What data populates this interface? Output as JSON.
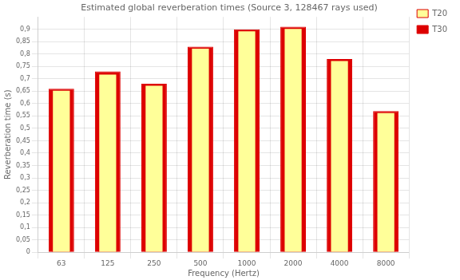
{
  "chart_data": {
    "type": "bar",
    "title": "Estimated global reverberation times (Source 3, 128467 rays used)",
    "xlabel": "Frequency (Hertz)",
    "ylabel": "Reverberation time (s)",
    "categories": [
      "63",
      "125",
      "250",
      "500",
      "1000",
      "2000",
      "4000",
      "8000"
    ],
    "series": [
      {
        "name": "T30",
        "color": "#dd0000",
        "values": [
          0.66,
          0.73,
          0.68,
          0.83,
          0.9,
          0.91,
          0.78,
          0.57
        ]
      },
      {
        "name": "T20",
        "color": "#ffff99",
        "values": [
          0.655,
          0.72,
          0.675,
          0.825,
          0.895,
          0.905,
          0.775,
          0.565
        ]
      }
    ],
    "ylim": [
      0,
      0.95
    ],
    "yticks": [
      0,
      {
        "value": 0.05,
        "label": "0,05"
      },
      {
        "value": 0.1,
        "label": "0,1"
      },
      {
        "value": 0.15,
        "label": "0,15"
      },
      {
        "value": 0.2,
        "label": "0,2"
      },
      {
        "value": 0.25,
        "label": "0,25"
      },
      {
        "value": 0.3,
        "label": "0,3"
      },
      {
        "value": 0.35,
        "label": "0,35"
      },
      {
        "value": 0.4,
        "label": "0,4"
      },
      {
        "value": 0.45,
        "label": "0,45"
      },
      {
        "value": 0.5,
        "label": "0,5"
      },
      {
        "value": 0.55,
        "label": "0,55"
      },
      {
        "value": 0.6,
        "label": "0,6"
      },
      {
        "value": 0.65,
        "label": "0,65"
      },
      {
        "value": 0.7,
        "label": "0,7"
      },
      {
        "value": 0.75,
        "label": "0,75"
      },
      {
        "value": 0.8,
        "label": "0,8"
      },
      {
        "value": 0.85,
        "label": "0,85"
      },
      {
        "value": 0.9,
        "label": "0,9"
      }
    ],
    "grid": true,
    "legend": "upper right"
  }
}
